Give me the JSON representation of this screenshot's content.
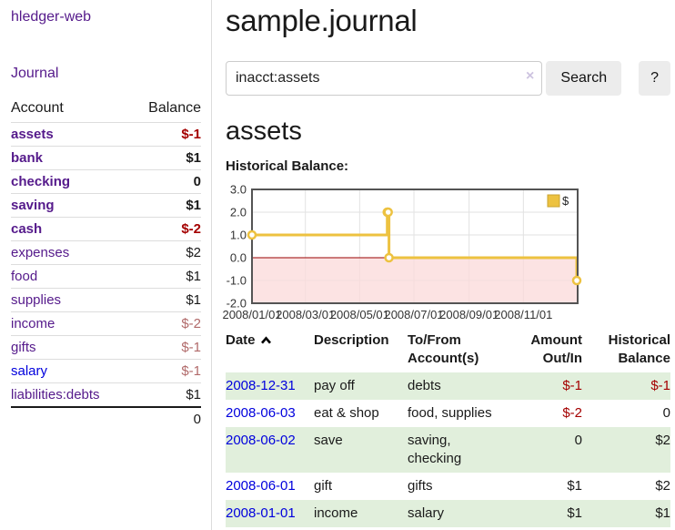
{
  "app": {
    "title": "hledger-web"
  },
  "sidebar": {
    "nav_journal": "Journal",
    "table": {
      "account_header": "Account",
      "balance_header": "Balance",
      "accounts": [
        {
          "name": "assets",
          "depth": 0,
          "bold": true,
          "balance": "$-1",
          "balance_style": "negative-strong",
          "link_style": "visited"
        },
        {
          "name": "bank",
          "depth": 1,
          "bold": true,
          "balance": "$1",
          "balance_style": "normal",
          "link_style": "visited"
        },
        {
          "name": "checking",
          "depth": 2,
          "bold": true,
          "balance": "0",
          "balance_style": "normal",
          "link_style": "visited"
        },
        {
          "name": "saving",
          "depth": 2,
          "bold": true,
          "balance": "$1",
          "balance_style": "normal",
          "link_style": "visited"
        },
        {
          "name": "cash",
          "depth": 1,
          "bold": true,
          "balance": "$-2",
          "balance_style": "negative-strong",
          "link_style": "visited"
        },
        {
          "name": "expenses",
          "depth": 0,
          "bold": false,
          "balance": "$2",
          "balance_style": "normal",
          "link_style": "visited"
        },
        {
          "name": "food",
          "depth": 1,
          "bold": false,
          "balance": "$1",
          "balance_style": "normal",
          "link_style": "visited"
        },
        {
          "name": "supplies",
          "depth": 1,
          "bold": false,
          "balance": "$1",
          "balance_style": "normal",
          "link_style": "visited"
        },
        {
          "name": "income",
          "depth": 0,
          "bold": false,
          "balance": "$-2",
          "balance_style": "negative-soft",
          "link_style": "visited"
        },
        {
          "name": "gifts",
          "depth": 1,
          "bold": false,
          "balance": "$-1",
          "balance_style": "negative-soft",
          "link_style": "visited"
        },
        {
          "name": "salary",
          "depth": 1,
          "bold": false,
          "balance": "$-1",
          "balance_style": "negative-soft",
          "link_style": "unvisited"
        },
        {
          "name": "liabilities:debts",
          "depth": 0,
          "bold": false,
          "balance": "$1",
          "balance_style": "normal",
          "link_style": "visited"
        }
      ],
      "total": "0"
    }
  },
  "main": {
    "title": "sample.journal",
    "search": {
      "value": "inacct:assets",
      "clear_glyph": "×",
      "button_label": "Search",
      "help_label": "?"
    },
    "account_heading": "assets",
    "chart_label": "Historical Balance:"
  },
  "chart_data": {
    "type": "line",
    "title": "Historical Balance:",
    "step": true,
    "series": [
      {
        "name": "$",
        "color": "#edc240",
        "points": [
          [
            "2008-01-01",
            1
          ],
          [
            "2008-06-01",
            2
          ],
          [
            "2008-06-02",
            2
          ],
          [
            "2008-06-03",
            0
          ],
          [
            "2008-12-31",
            -1
          ]
        ]
      }
    ],
    "xlim": [
      "2008-01-01",
      "2009-01-01"
    ],
    "ylim": [
      -2,
      3
    ],
    "x_ticks": [
      "2008/01/01",
      "2008/03/01",
      "2008/05/01",
      "2008/07/01",
      "2008/09/01",
      "2008/11/01"
    ],
    "y_ticks": [
      3,
      2,
      1,
      0,
      -1,
      -2
    ],
    "legend_position": "top-right",
    "grid": true,
    "grid_color": "#e2e2e2",
    "border_color": "#545454",
    "negative_region_color": "#fbdada",
    "zero_line_color": "#990000",
    "legend_swatch_border": "#c9a32f"
  },
  "register": {
    "header": {
      "date": "Date",
      "description": "Description",
      "tofrom": "To/From Account(s)",
      "amount": "Amount Out/In",
      "balance": "Historical Balance"
    },
    "rows": [
      {
        "date": "2008-12-31",
        "description": "pay off",
        "accounts": "debts",
        "amount": "$-1",
        "amount_negative": true,
        "balance": "$-1",
        "balance_negative": true,
        "shaded": true
      },
      {
        "date": "2008-06-03",
        "description": "eat & shop",
        "accounts": "food, supplies",
        "amount": "$-2",
        "amount_negative": true,
        "balance": "0",
        "balance_negative": false,
        "shaded": false
      },
      {
        "date": "2008-06-02",
        "description": "save",
        "accounts": "saving, checking",
        "amount": "0",
        "amount_negative": false,
        "balance": "$2",
        "balance_negative": false,
        "shaded": true
      },
      {
        "date": "2008-06-01",
        "description": "gift",
        "accounts": "gifts",
        "amount": "$1",
        "amount_negative": false,
        "balance": "$2",
        "balance_negative": false,
        "shaded": false
      },
      {
        "date": "2008-01-01",
        "description": "income",
        "accounts": "salary",
        "amount": "$1",
        "amount_negative": false,
        "balance": "$1",
        "balance_negative": false,
        "shaded": true
      }
    ]
  },
  "colors": {
    "link_purple": "#551A8B",
    "link_blue": "#0000dd",
    "negative_strong": "#a40000",
    "negative_soft": "#b16a6a",
    "row_green": "#e1efdc",
    "chart_line": "#edc240",
    "chart_negative_region": "#fbdada",
    "chart_zero_line": "#990000",
    "button_gray": "#ececec"
  }
}
